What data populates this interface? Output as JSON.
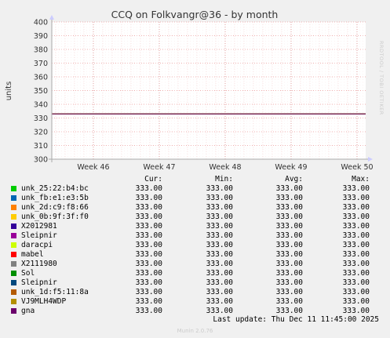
{
  "chart_data": {
    "type": "line",
    "title": "CCQ on Folkvangr@36 - by month",
    "ylabel": "units",
    "xlabel": "",
    "ylim": [
      300,
      400
    ],
    "yticks": [
      300,
      310,
      320,
      330,
      340,
      350,
      360,
      370,
      380,
      390,
      400
    ],
    "xticks": [
      "Week 46",
      "Week 47",
      "Week 48",
      "Week 49",
      "Week 50"
    ],
    "grid": true,
    "side_label": "RRDTOOL / TOBI OETIKER",
    "series": [
      {
        "name": "unk_25:22:b4:bc",
        "color": "#00cc00",
        "value": 333.0
      },
      {
        "name": "unk_fb:e1:e3:5b",
        "color": "#0066b3",
        "value": 333.0
      },
      {
        "name": "unk_2d:c9:f8:66",
        "color": "#ff8000",
        "value": 333.0
      },
      {
        "name": "unk_0b:9f:3f:f0",
        "color": "#ffcc00",
        "value": 333.0
      },
      {
        "name": "X2012981",
        "color": "#330099",
        "value": 333.0
      },
      {
        "name": "Sleipnir",
        "color": "#990099",
        "value": 333.0
      },
      {
        "name": "daracpi",
        "color": "#ccff00",
        "value": 333.0
      },
      {
        "name": "mabel",
        "color": "#ff0000",
        "value": 333.0
      },
      {
        "name": "X2111980",
        "color": "#808080",
        "value": 333.0
      },
      {
        "name": "Sol",
        "color": "#008f00",
        "value": 333.0
      },
      {
        "name": "Sleipnir",
        "color": "#00487d",
        "value": 333.0
      },
      {
        "name": "unk_1d:f5:11:8a",
        "color": "#b35a00",
        "value": 333.0
      },
      {
        "name": "VJ9MLH4WDP",
        "color": "#b38f00",
        "value": 333.0
      },
      {
        "name": "gna",
        "color": "#6b006b",
        "value": 333.0
      }
    ]
  },
  "legend": {
    "headers": {
      "cur": "Cur:",
      "min": "Min:",
      "avg": "Avg:",
      "max": "Max:"
    },
    "rows": [
      {
        "cur": "333.00",
        "min": "333.00",
        "avg": "333.00",
        "max": "333.00"
      },
      {
        "cur": "333.00",
        "min": "333.00",
        "avg": "333.00",
        "max": "333.00"
      },
      {
        "cur": "333.00",
        "min": "333.00",
        "avg": "333.00",
        "max": "333.00"
      },
      {
        "cur": "333.00",
        "min": "333.00",
        "avg": "333.00",
        "max": "333.00"
      },
      {
        "cur": "333.00",
        "min": "333.00",
        "avg": "333.00",
        "max": "333.00"
      },
      {
        "cur": "333.00",
        "min": "333.00",
        "avg": "333.00",
        "max": "333.00"
      },
      {
        "cur": "333.00",
        "min": "333.00",
        "avg": "333.00",
        "max": "333.00"
      },
      {
        "cur": "333.00",
        "min": "333.00",
        "avg": "333.00",
        "max": "333.00"
      },
      {
        "cur": "333.00",
        "min": "333.00",
        "avg": "333.00",
        "max": "333.00"
      },
      {
        "cur": "333.00",
        "min": "333.00",
        "avg": "333.00",
        "max": "333.00"
      },
      {
        "cur": "333.00",
        "min": "333.00",
        "avg": "333.00",
        "max": "333.00"
      },
      {
        "cur": "333.00",
        "min": "333.00",
        "avg": "333.00",
        "max": "333.00"
      },
      {
        "cur": "333.00",
        "min": "333.00",
        "avg": "333.00",
        "max": "333.00"
      },
      {
        "cur": "333.00",
        "min": "333.00",
        "avg": "333.00",
        "max": "333.00"
      }
    ]
  },
  "footer": {
    "last_update": "Last update: Thu Dec 11 11:45:00 2025",
    "munin_version": "Munin 2.0.76"
  }
}
